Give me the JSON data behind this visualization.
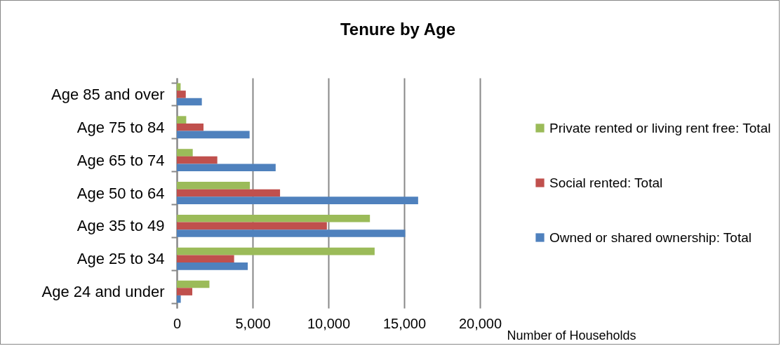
{
  "chart_data": {
    "type": "bar",
    "orientation": "horizontal",
    "title": "Tenure by Age",
    "xlabel": "Number of Households",
    "categories": [
      "Age 85 and over",
      "Age 75 to 84",
      "Age 65 to 74",
      "Age 50 to 64",
      "Age 35 to 49",
      "Age 25 to 34",
      "Age 24 and under"
    ],
    "series": [
      {
        "name": "Private rented or living rent free: Total",
        "color": "#9bbb59",
        "values": [
          250,
          620,
          1050,
          4820,
          12740,
          13050,
          2150
        ]
      },
      {
        "name": "Social rented: Total",
        "color": "#c0504d",
        "values": [
          590,
          1760,
          2670,
          6810,
          9900,
          3780,
          1020
        ]
      },
      {
        "name": "Owned or shared ownership: Total",
        "color": "#4f81bd",
        "values": [
          1650,
          4800,
          6520,
          15920,
          15070,
          4680,
          260
        ]
      }
    ],
    "xlim": [
      0,
      20000
    ],
    "xticks": [
      0,
      {
        "value": 5000,
        "label": "5,000"
      },
      {
        "value": 10000,
        "label": "10,000"
      },
      {
        "value": 15000,
        "label": "15,000"
      },
      {
        "value": 20000,
        "label": "20,000"
      }
    ],
    "grid": "x",
    "legend": "right"
  }
}
